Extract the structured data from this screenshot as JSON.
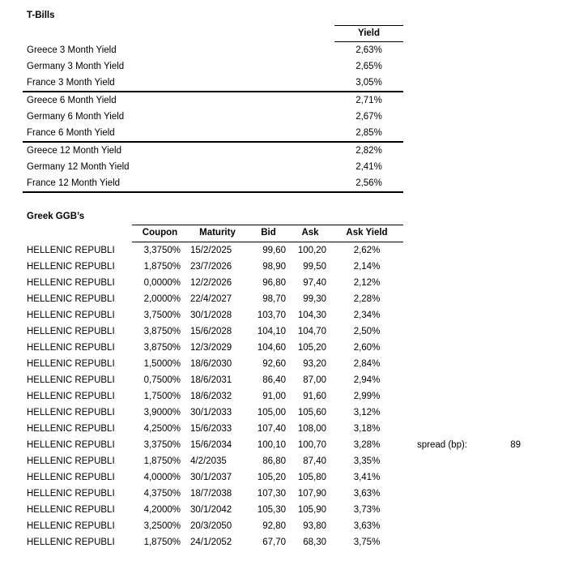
{
  "tbills": {
    "title": "T-Bills",
    "yield_header": "Yield",
    "groups": [
      {
        "rows": [
          {
            "label": "Greece 3 Month Yield",
            "value": "2,63%"
          },
          {
            "label": "Germany 3 Month Yield",
            "value": "2,65%"
          },
          {
            "label": "France 3 Month Yield",
            "value": "3,05%"
          }
        ]
      },
      {
        "rows": [
          {
            "label": "Greece 6 Month Yield",
            "value": "2,71%"
          },
          {
            "label": "Germany 6 Month Yield",
            "value": "2,67%"
          },
          {
            "label": "France 6 Month Yield",
            "value": "2,85%"
          }
        ]
      },
      {
        "rows": [
          {
            "label": "Greece 12 Month Yield",
            "value": "2,82%"
          },
          {
            "label": "Germany 12 Month Yield",
            "value": "2,41%"
          },
          {
            "label": "France 12 Month Yield",
            "value": "2,56%"
          }
        ]
      }
    ]
  },
  "ggb": {
    "title": "Greek GGB’s",
    "columns": [
      "Coupon",
      "Maturity",
      "Bid",
      "Ask",
      "Ask Yield"
    ],
    "rows": [
      {
        "name": "HELLENIC REPUBLI",
        "coupon": "3,3750%",
        "maturity": "15/2/2025",
        "bid": "99,60",
        "ask": "100,20",
        "ask_yield": "2,62%"
      },
      {
        "name": "HELLENIC REPUBLI",
        "coupon": "1,8750%",
        "maturity": "23/7/2026",
        "bid": "98,90",
        "ask": "99,50",
        "ask_yield": "2,14%"
      },
      {
        "name": "HELLENIC REPUBLI",
        "coupon": "0,0000%",
        "maturity": "12/2/2026",
        "bid": "96,80",
        "ask": "97,40",
        "ask_yield": "2,12%"
      },
      {
        "name": "HELLENIC REPUBLI",
        "coupon": "2,0000%",
        "maturity": "22/4/2027",
        "bid": "98,70",
        "ask": "99,30",
        "ask_yield": "2,28%"
      },
      {
        "name": "HELLENIC REPUBLI",
        "coupon": "3,7500%",
        "maturity": "30/1/2028",
        "bid": "103,70",
        "ask": "104,30",
        "ask_yield": "2,34%"
      },
      {
        "name": "HELLENIC REPUBLI",
        "coupon": "3,8750%",
        "maturity": "15/6/2028",
        "bid": "104,10",
        "ask": "104,70",
        "ask_yield": "2,50%"
      },
      {
        "name": "HELLENIC REPUBLI",
        "coupon": "3,8750%",
        "maturity": "12/3/2029",
        "bid": "104,60",
        "ask": "105,20",
        "ask_yield": "2,60%"
      },
      {
        "name": "HELLENIC REPUBLI",
        "coupon": "1,5000%",
        "maturity": "18/6/2030",
        "bid": "92,60",
        "ask": "93,20",
        "ask_yield": "2,84%"
      },
      {
        "name": "HELLENIC REPUBLI",
        "coupon": "0,7500%",
        "maturity": "18/6/2031",
        "bid": "86,40",
        "ask": "87,00",
        "ask_yield": "2,94%"
      },
      {
        "name": "HELLENIC REPUBLI",
        "coupon": "1,7500%",
        "maturity": "18/6/2032",
        "bid": "91,00",
        "ask": "91,60",
        "ask_yield": "2,99%"
      },
      {
        "name": "HELLENIC REPUBLI",
        "coupon": "3,9000%",
        "maturity": "30/1/2033",
        "bid": "105,00",
        "ask": "105,60",
        "ask_yield": "3,12%"
      },
      {
        "name": "HELLENIC REPUBLI",
        "coupon": "4,2500%",
        "maturity": "15/6/2033",
        "bid": "107,40",
        "ask": "108,00",
        "ask_yield": "3,18%"
      },
      {
        "name": "HELLENIC REPUBLI",
        "coupon": "3,3750%",
        "maturity": "15/6/2034",
        "bid": "100,10",
        "ask": "100,70",
        "ask_yield": "3,28%"
      },
      {
        "name": "HELLENIC REPUBLI",
        "coupon": "1,8750%",
        "maturity": "4/2/2035",
        "bid": "86,80",
        "ask": "87,40",
        "ask_yield": "3,35%"
      },
      {
        "name": "HELLENIC REPUBLI",
        "coupon": "4,0000%",
        "maturity": "30/1/2037",
        "bid": "105,20",
        "ask": "105,80",
        "ask_yield": "3,41%"
      },
      {
        "name": "HELLENIC REPUBLI",
        "coupon": "4,3750%",
        "maturity": "18/7/2038",
        "bid": "107,30",
        "ask": "107,90",
        "ask_yield": "3,63%"
      },
      {
        "name": "HELLENIC REPUBLI",
        "coupon": "4,2000%",
        "maturity": "30/1/2042",
        "bid": "105,30",
        "ask": "105,90",
        "ask_yield": "3,73%"
      },
      {
        "name": "HELLENIC REPUBLI",
        "coupon": "3,2500%",
        "maturity": "20/3/2050",
        "bid": "92,80",
        "ask": "93,80",
        "ask_yield": "3,63%"
      },
      {
        "name": "HELLENIC REPUBLI",
        "coupon": "1,8750%",
        "maturity": "24/1/2052",
        "bid": "67,70",
        "ask": "68,30",
        "ask_yield": "3,75%"
      }
    ]
  },
  "spread": {
    "label": "spread (bp):",
    "value": "89"
  }
}
